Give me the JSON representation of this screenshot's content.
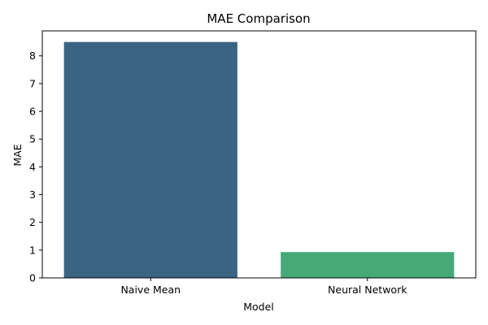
{
  "chart_data": {
    "type": "bar",
    "title": "MAE Comparison",
    "xlabel": "Model",
    "ylabel": "MAE",
    "categories": [
      "Naive Mean",
      "Neural Network"
    ],
    "values": [
      8.5,
      0.93
    ],
    "colors": [
      "#3b6482",
      "#45a978"
    ],
    "ylim": [
      0,
      8.9
    ],
    "yticks": [
      "0",
      "1",
      "2",
      "3",
      "4",
      "5",
      "6",
      "7",
      "8"
    ],
    "grid": false,
    "legend": "none"
  }
}
